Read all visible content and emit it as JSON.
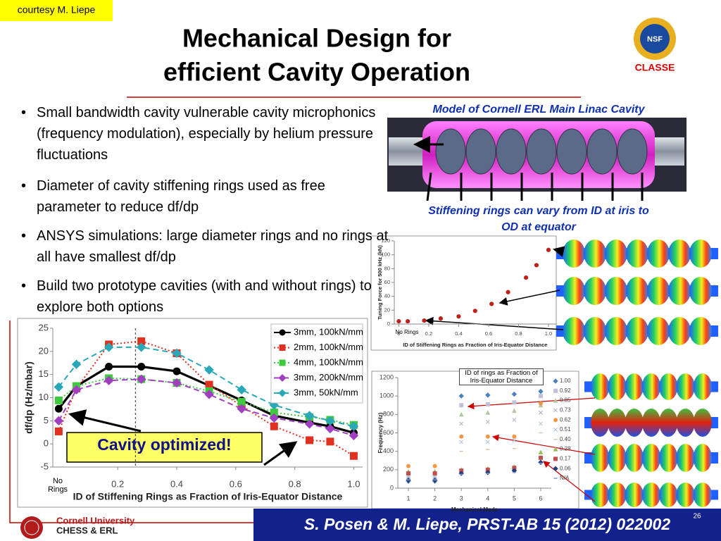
{
  "header": {
    "credit": "courtesy M. Liepe",
    "title_lines": [
      "Mechanical Design for",
      "efficient Cavity Operation"
    ],
    "logo": "CLASSE"
  },
  "bullets": [
    "Small bandwidth cavity vulnerable cavity microphonics (frequency modulation), especially by helium pressure fluctuations",
    "Diameter of cavity stiffening rings used as free parameter to reduce df/dp",
    "ANSYS simulations: large diameter rings and no rings at all have smallest df/dp",
    "Build two prototype cavities (with and without rings) to explore both options"
  ],
  "captions": {
    "model": "Model of Cornell ERL Main Linac Cavity",
    "rings_lines": [
      "Stiffening rings can vary from ID at iris to",
      "OD at equator"
    ]
  },
  "chart_data": [
    {
      "type": "line",
      "xlabel": "ID of Stiffening Rings as Fraction of Iris-Equator Distance",
      "ylabel": "df/dp (Hz/mbar)",
      "x": [
        0,
        0.06,
        0.17,
        0.28,
        0.4,
        0.51,
        0.62,
        0.73,
        0.85,
        0.92,
        1.0
      ],
      "xlim": [
        -0.02,
        1.03
      ],
      "ylim": [
        -5,
        25
      ],
      "xticks": [
        0.2,
        0.4,
        0.6,
        0.8,
        {
          "value": 1,
          "label": "1.0"
        }
      ],
      "yticks": [
        -5,
        0,
        5,
        10,
        15,
        20,
        25
      ],
      "vline": 0.26,
      "legend": "upper right",
      "series": [
        {
          "name": "3mm, 100kN/mm",
          "color": "#000000",
          "line_style": "solid",
          "marker": "circle",
          "values": [
            7.6,
            12.5,
            16.7,
            16.7,
            15.7,
            12.6,
            9.4,
            6.1,
            4.6,
            3.8,
            2.4
          ]
        },
        {
          "name": "2mm, 100kN/mm",
          "color": "#e03020",
          "line_style": "dotted",
          "marker": "square",
          "values": [
            2.7,
            12.0,
            21.5,
            22.2,
            19.6,
            12.8,
            8.2,
            3.8,
            0.8,
            0.5,
            -2.6
          ]
        },
        {
          "name": "4mm, 100kN/mm",
          "color": "#3fc93f",
          "line_style": "dotted",
          "marker": "square",
          "values": [
            9.4,
            12.5,
            14.2,
            14.0,
            13.2,
            11.4,
            9.1,
            6.8,
            5.8,
            5.2,
            4.1
          ]
        },
        {
          "name": "3mm, 200kN/mm",
          "color": "#a040c0",
          "line_style": "dashed",
          "marker": "diamond",
          "values": [
            5.0,
            11.7,
            13.7,
            14.0,
            13.2,
            10.7,
            7.6,
            5.6,
            4.3,
            3.3,
            1.8
          ]
        },
        {
          "name": "3mm,   50kN/mm",
          "color": "#2aa8b8",
          "line_style": "dashed",
          "marker": "diamond",
          "values": [
            12.3,
            17.2,
            20.9,
            20.9,
            19.6,
            16.0,
            11.7,
            8.4,
            6.1,
            5.0,
            3.8
          ]
        }
      ],
      "annotations": [
        "No Rings",
        "Cavity optimized!"
      ]
    },
    {
      "type": "scatter",
      "xlabel": "ID of Stiffening Rings as Fraction of Iris-Equator Distance",
      "ylabel": "Tuning Force for 500 kHz (kN)",
      "x": [
        0,
        0.06,
        0.17,
        0.28,
        0.4,
        0.51,
        0.62,
        0.73,
        0.85,
        0.92,
        1.0
      ],
      "xlim": [
        -0.03,
        1.05
      ],
      "ylim": [
        0,
        120
      ],
      "xticks": [
        0,
        0.2,
        0.4,
        0.6,
        0.8,
        {
          "value": 1,
          "label": "1.0"
        }
      ],
      "yticks": [
        0,
        20,
        40,
        60,
        80,
        100,
        120
      ],
      "series": [
        {
          "name": null,
          "color": "#c0201a",
          "marker": "circle",
          "values": [
            4,
            4,
            5,
            8,
            11,
            19,
            29,
            46,
            67,
            85,
            107
          ]
        }
      ],
      "annotations": [
        "No Rings"
      ]
    },
    {
      "type": "scatter",
      "xlabel": "Mechanical Mode",
      "ylabel": "Frequency (Hz)",
      "x": [
        1,
        2,
        3,
        4,
        5,
        6
      ],
      "xlim": [
        0.6,
        6.4
      ],
      "ylim": [
        0,
        1200
      ],
      "xticks": [
        1,
        2,
        3,
        4,
        5,
        6
      ],
      "yticks": [
        0,
        200,
        400,
        600,
        800,
        1000,
        1200
      ],
      "legend": "right",
      "series": [
        {
          "name": "1.00",
          "color": "#4f81bd",
          "marker": "diamond",
          "values": [
            75,
            75,
            1000,
            1010,
            1020,
            1050
          ]
        },
        {
          "name": "0.92",
          "color": "#c0c0d8",
          "marker": "square",
          "values": [
            90,
            90,
            900,
            910,
            930,
            1000
          ]
        },
        {
          "name": "0.85",
          "color": "#b0c8a0",
          "marker": "triangle",
          "values": [
            100,
            100,
            800,
            820,
            840,
            900
          ]
        },
        {
          "name": "0.73",
          "color": "#b0a8c8",
          "marker": "cross",
          "values": [
            110,
            110,
            700,
            720,
            740,
            820
          ]
        },
        {
          "name": "0.62",
          "color": "#f79646",
          "marker": "circle",
          "values": [
            240,
            240,
            560,
            560,
            560,
            920
          ]
        },
        {
          "name": "0.51",
          "color": "#a8c0e0",
          "marker": "cross",
          "values": [
            130,
            130,
            500,
            500,
            520,
            700
          ]
        },
        {
          "name": "0.40",
          "color": "#e0c0a0",
          "marker": "dash",
          "values": [
            150,
            150,
            400,
            420,
            430,
            600
          ]
        },
        {
          "name": "0.28",
          "color": "#9bbb59",
          "marker": "triangle",
          "values": [
            180,
            180,
            200,
            210,
            230,
            390
          ]
        },
        {
          "name": "0.17",
          "color": "#c0504d",
          "marker": "square",
          "values": [
            160,
            160,
            190,
            200,
            220,
            330
          ]
        },
        {
          "name": "0.06",
          "color": "#1f3f7f",
          "marker": "diamond",
          "values": [
            85,
            85,
            160,
            170,
            190,
            280
          ]
        },
        {
          "name": "N/A",
          "color": "#7f96c8",
          "marker": "dash",
          "values": [
            90,
            90,
            150,
            160,
            170,
            270
          ]
        }
      ],
      "annotations": [
        "ID of rings as Fraction of Iris-Equator Distance"
      ]
    }
  ],
  "footer": {
    "university": "Cornell University",
    "lab": "CHESS & ERL",
    "citation": "S. Posen & M. Liepe, PRST-AB 15 (2012) 022002",
    "page": "26"
  }
}
